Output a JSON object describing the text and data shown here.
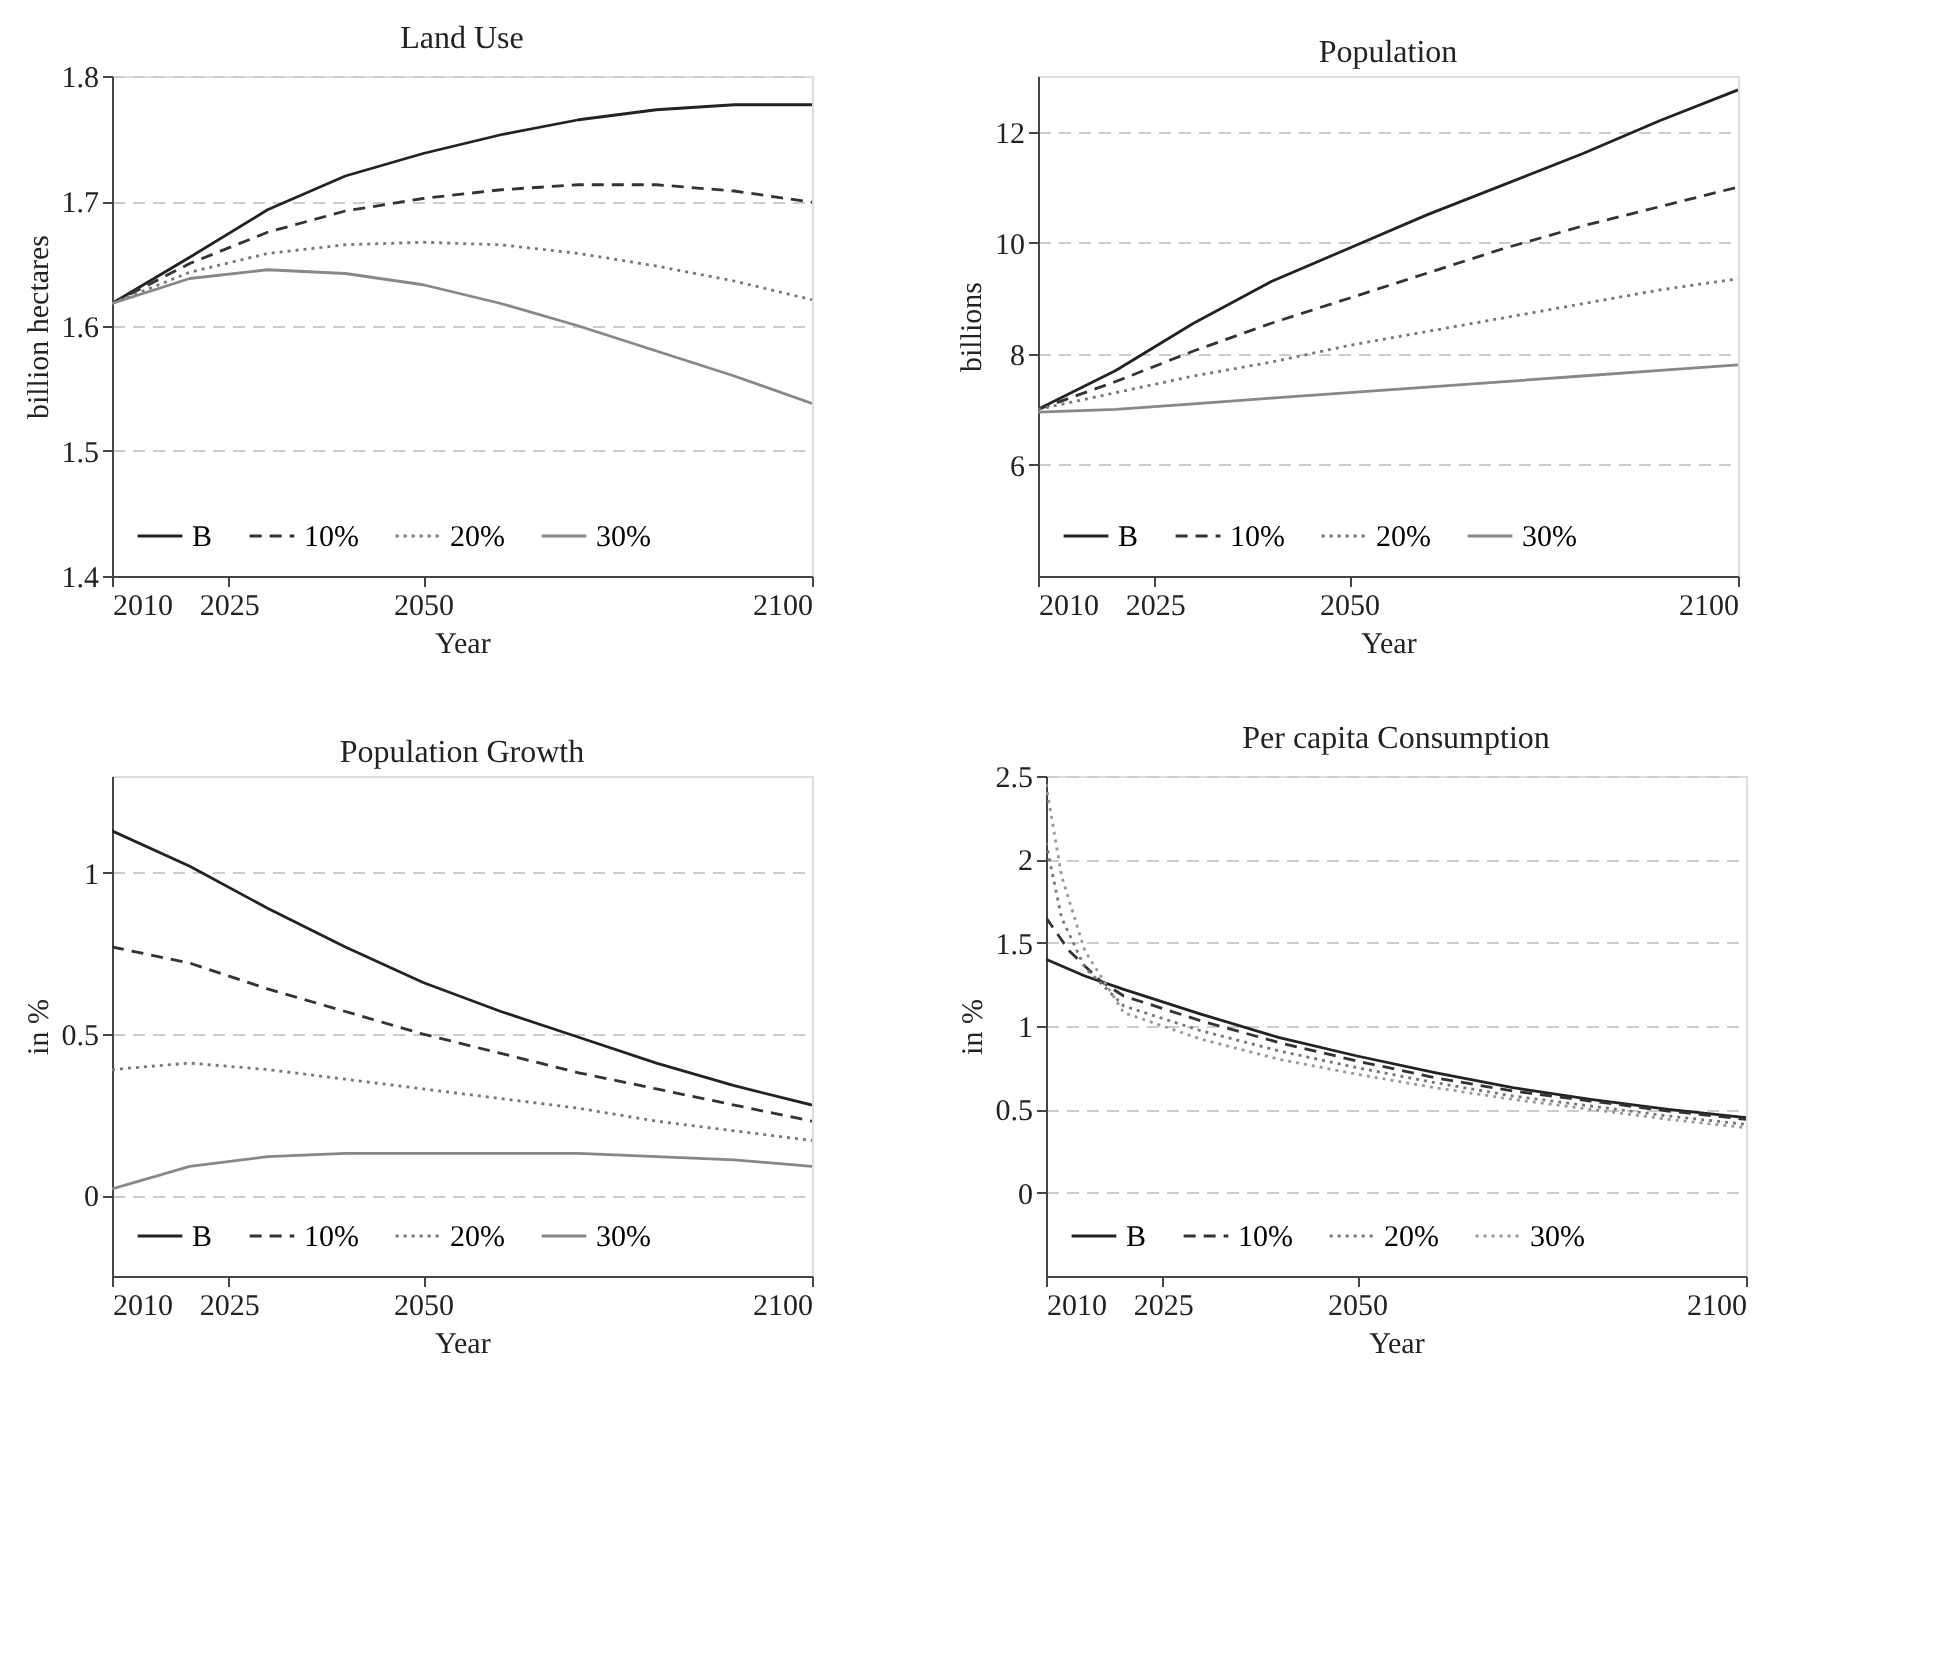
{
  "chart_data": [
    {
      "type": "line",
      "title": "Land Use",
      "xlabel": "Year",
      "ylabel": "billion hectares",
      "xlim": [
        2010,
        2100
      ],
      "xticks": [
        2010,
        2025,
        2050,
        2100
      ],
      "ylim": [
        1.4,
        1.8
      ],
      "yticks": [
        1.4,
        1.5,
        1.6,
        1.7,
        1.8
      ],
      "grid": "y",
      "legend": "bottom",
      "series": [
        {
          "name": "B",
          "color": "#222222",
          "line_style": "solid",
          "x": [
            2010,
            2020,
            2030,
            2040,
            2050,
            2060,
            2070,
            2080,
            2090,
            2100
          ],
          "values": [
            1.618,
            1.655,
            1.693,
            1.72,
            1.738,
            1.753,
            1.765,
            1.773,
            1.777,
            1.777
          ]
        },
        {
          "name": "10%",
          "color": "#333333",
          "line_style": "dashed",
          "x": [
            2010,
            2020,
            2030,
            2040,
            2050,
            2060,
            2070,
            2080,
            2090,
            2100
          ],
          "values": [
            1.618,
            1.65,
            1.675,
            1.692,
            1.702,
            1.709,
            1.713,
            1.713,
            1.708,
            1.699
          ]
        },
        {
          "name": "20%",
          "color": "#777777",
          "line_style": "dotted",
          "x": [
            2010,
            2020,
            2030,
            2040,
            2050,
            2060,
            2070,
            2080,
            2090,
            2100
          ],
          "values": [
            1.618,
            1.643,
            1.658,
            1.665,
            1.667,
            1.665,
            1.658,
            1.648,
            1.636,
            1.621
          ]
        },
        {
          "name": "30%",
          "color": "#888888",
          "line_style": "solid",
          "x": [
            2010,
            2020,
            2030,
            2040,
            2050,
            2060,
            2070,
            2080,
            2090,
            2100
          ],
          "values": [
            1.618,
            1.638,
            1.645,
            1.642,
            1.633,
            1.618,
            1.6,
            1.58,
            1.56,
            1.538
          ]
        }
      ]
    },
    {
      "type": "line",
      "title": "Population",
      "xlabel": "Year",
      "ylabel": "billions",
      "xlim": [
        2010,
        2100
      ],
      "xticks": [
        2010,
        2025,
        2050,
        2100
      ],
      "ylim": [
        4,
        13
      ],
      "yticks": [
        6,
        8,
        10,
        12
      ],
      "grid": "y",
      "legend": "bottom",
      "series": [
        {
          "name": "B",
          "color": "#222222",
          "line_style": "solid",
          "x": [
            2010,
            2020,
            2030,
            2040,
            2050,
            2060,
            2070,
            2080,
            2090,
            2100
          ],
          "values": [
            7.0,
            7.7,
            8.55,
            9.3,
            9.9,
            10.5,
            11.05,
            11.6,
            12.2,
            12.75
          ]
        },
        {
          "name": "10%",
          "color": "#333333",
          "line_style": "dashed",
          "x": [
            2010,
            2020,
            2030,
            2040,
            2050,
            2060,
            2070,
            2080,
            2090,
            2100
          ],
          "values": [
            7.0,
            7.5,
            8.05,
            8.55,
            9.0,
            9.45,
            9.9,
            10.3,
            10.65,
            11.0
          ]
        },
        {
          "name": "20%",
          "color": "#777777",
          "line_style": "dotted",
          "x": [
            2010,
            2020,
            2030,
            2040,
            2050,
            2060,
            2070,
            2080,
            2090,
            2100
          ],
          "values": [
            7.0,
            7.3,
            7.6,
            7.85,
            8.15,
            8.4,
            8.65,
            8.9,
            9.15,
            9.35
          ]
        },
        {
          "name": "30%",
          "color": "#888888",
          "line_style": "solid",
          "x": [
            2010,
            2020,
            2030,
            2040,
            2050,
            2060,
            2070,
            2080,
            2090,
            2100
          ],
          "values": [
            6.95,
            7.0,
            7.1,
            7.2,
            7.3,
            7.4,
            7.5,
            7.6,
            7.7,
            7.8
          ]
        }
      ]
    },
    {
      "type": "line",
      "title": "Population Growth",
      "xlabel": "Year",
      "ylabel": "in %",
      "xlim": [
        2010,
        2100
      ],
      "xticks": [
        2010,
        2025,
        2050,
        2100
      ],
      "ylim": [
        -0.25,
        1.3
      ],
      "yticks": [
        0,
        0.5,
        1
      ],
      "grid": "y",
      "legend": "bottom",
      "series": [
        {
          "name": "B",
          "color": "#222222",
          "line_style": "solid",
          "x": [
            2010,
            2020,
            2030,
            2040,
            2050,
            2060,
            2070,
            2080,
            2090,
            2100
          ],
          "values": [
            1.13,
            1.02,
            0.89,
            0.77,
            0.66,
            0.57,
            0.49,
            0.41,
            0.34,
            0.28
          ]
        },
        {
          "name": "10%",
          "color": "#333333",
          "line_style": "dashed",
          "x": [
            2010,
            2020,
            2030,
            2040,
            2050,
            2060,
            2070,
            2080,
            2090,
            2100
          ],
          "values": [
            0.77,
            0.72,
            0.64,
            0.57,
            0.5,
            0.44,
            0.38,
            0.33,
            0.28,
            0.23
          ]
        },
        {
          "name": "20%",
          "color": "#777777",
          "line_style": "dotted",
          "x": [
            2010,
            2020,
            2030,
            2040,
            2050,
            2060,
            2070,
            2080,
            2090,
            2100
          ],
          "values": [
            0.39,
            0.41,
            0.39,
            0.36,
            0.33,
            0.3,
            0.27,
            0.23,
            0.2,
            0.17
          ]
        },
        {
          "name": "30%",
          "color": "#888888",
          "line_style": "solid",
          "x": [
            2010,
            2020,
            2030,
            2040,
            2050,
            2060,
            2070,
            2080,
            2090,
            2100
          ],
          "values": [
            0.02,
            0.09,
            0.12,
            0.13,
            0.13,
            0.13,
            0.13,
            0.12,
            0.11,
            0.09
          ]
        }
      ]
    },
    {
      "type": "line",
      "title": "Per capita Consumption",
      "xlabel": "Year",
      "ylabel": "in %",
      "xlim": [
        2010,
        2100
      ],
      "xticks": [
        2010,
        2025,
        2050,
        2100
      ],
      "ylim": [
        -0.5,
        2.5
      ],
      "yticks": [
        0,
        0.5,
        1,
        1.5,
        2,
        2.5
      ],
      "grid": "y",
      "legend": "bottom",
      "series": [
        {
          "name": "B",
          "color": "#222222",
          "line_style": "solid",
          "x": [
            2010,
            2015,
            2020,
            2030,
            2040,
            2050,
            2060,
            2070,
            2080,
            2090,
            2100
          ],
          "values": [
            1.4,
            1.3,
            1.22,
            1.07,
            0.93,
            0.82,
            0.72,
            0.63,
            0.56,
            0.5,
            0.45
          ]
        },
        {
          "name": "10%",
          "color": "#333333",
          "line_style": "dashed",
          "x": [
            2010,
            2013,
            2017,
            2020,
            2030,
            2040,
            2050,
            2060,
            2070,
            2080,
            2090,
            2100
          ],
          "values": [
            1.65,
            1.45,
            1.27,
            1.18,
            1.03,
            0.9,
            0.79,
            0.69,
            0.61,
            0.55,
            0.49,
            0.44
          ]
        },
        {
          "name": "20%",
          "color": "#777777",
          "line_style": "dotted",
          "x": [
            2010,
            2012,
            2015,
            2020,
            2030,
            2040,
            2050,
            2060,
            2070,
            2080,
            2090,
            2100
          ],
          "values": [
            2.1,
            1.65,
            1.35,
            1.12,
            0.97,
            0.85,
            0.75,
            0.66,
            0.58,
            0.52,
            0.46,
            0.41
          ]
        },
        {
          "name": "30%",
          "color": "#999999",
          "line_style": "dotted",
          "x": [
            2010,
            2012,
            2015,
            2020,
            2030,
            2040,
            2050,
            2060,
            2070,
            2080,
            2090,
            2100
          ],
          "values": [
            2.45,
            1.9,
            1.45,
            1.08,
            0.92,
            0.8,
            0.71,
            0.63,
            0.56,
            0.5,
            0.44,
            0.39
          ]
        }
      ]
    }
  ]
}
